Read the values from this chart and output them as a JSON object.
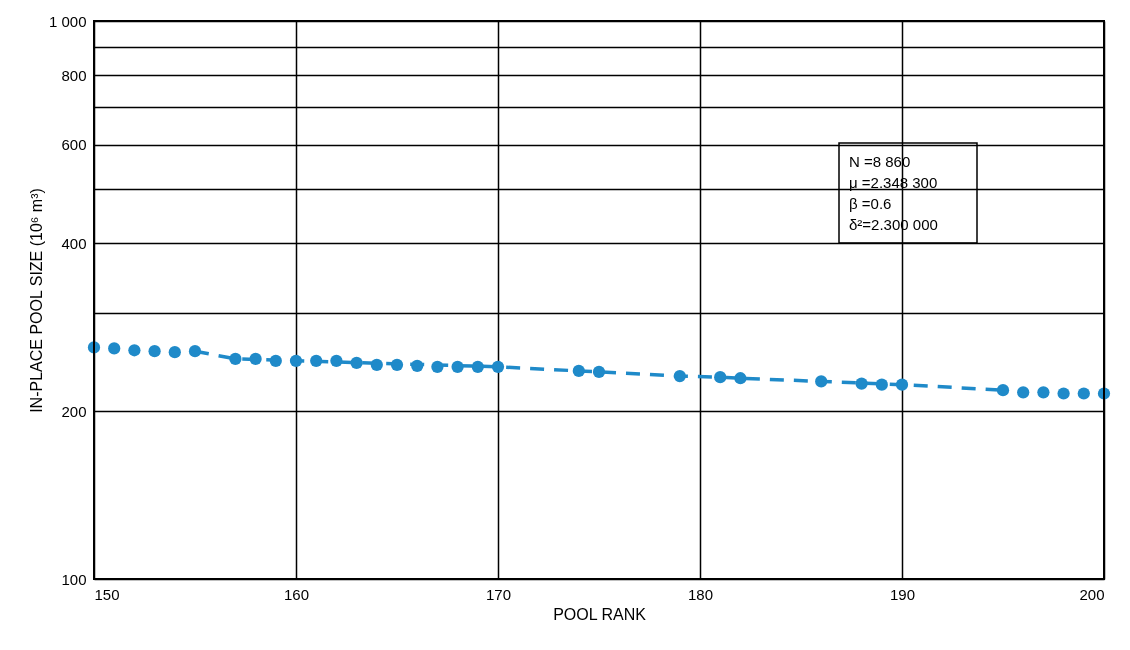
{
  "chart_data": {
    "type": "scatter",
    "xlabel": "POOL RANK",
    "ylabel": "IN-PLACE POOL SIZE (10⁶ m³)",
    "xlim": [
      150,
      200
    ],
    "xticks": [
      150,
      160,
      170,
      180,
      190,
      200
    ],
    "ylim": [
      100,
      1000
    ],
    "log": true,
    "yticks": [
      100,
      200,
      {
        "value": 300,
        "label": null
      },
      400,
      {
        "value": 500,
        "label": null
      },
      600,
      {
        "value": 700,
        "label": null
      },
      800,
      {
        "value": 900,
        "label": null
      },
      {
        "value": 1000,
        "label": "1 000"
      }
    ],
    "grid": true,
    "annotations": [
      "N =8 860",
      "μ =2.348 300",
      "β =0.6",
      "δ²=2.300 000"
    ],
    "series": [
      {
        "type": "scatter",
        "color": "#1f8ac9",
        "marker": "circle",
        "x": [
          150,
          151,
          152,
          153,
          154,
          155,
          157,
          158,
          159,
          160,
          161,
          162,
          163,
          164,
          165,
          166,
          167,
          168,
          169,
          170,
          174,
          175,
          179,
          181,
          182,
          186,
          188,
          189,
          190,
          195,
          196,
          197,
          198,
          199,
          200
        ],
        "values": [
          260,
          259,
          257,
          256,
          255,
          256,
          248,
          248,
          246,
          246,
          246,
          246,
          244,
          242,
          242,
          241,
          240,
          240,
          240,
          240,
          236,
          235,
          231,
          230,
          229,
          226,
          224,
          223,
          223,
          218,
          216,
          216,
          215,
          215,
          215
        ]
      },
      {
        "type": "line",
        "color": "#1f8ac9",
        "line_style": "dashed",
        "marker": "none",
        "x": [
          155,
          157,
          170,
          174,
          175,
          179,
          181,
          182,
          186,
          190,
          195
        ],
        "values": [
          256,
          248,
          240,
          236,
          235,
          231,
          230,
          229,
          226,
          223,
          218
        ]
      }
    ]
  }
}
